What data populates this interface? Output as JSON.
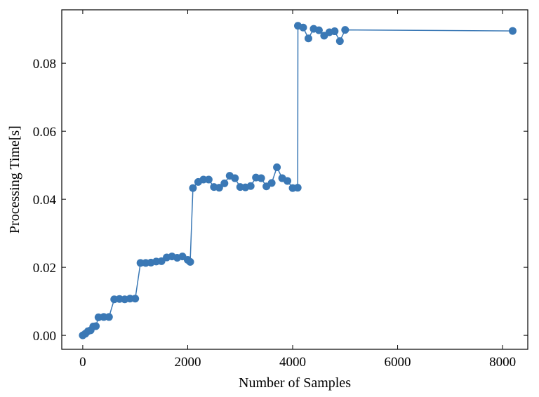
{
  "chart_data": {
    "type": "line",
    "title": "",
    "xlabel": "Number of Samples",
    "ylabel": "Processing Time[s]",
    "xlim": [
      -400,
      8480
    ],
    "ylim": [
      -0.0041,
      0.0957
    ],
    "xticks": [
      0,
      2000,
      4000,
      6000,
      8000
    ],
    "xtick_labels": [
      "0",
      "2000",
      "4000",
      "6000",
      "8000"
    ],
    "yticks": [
      0.0,
      0.02,
      0.04,
      0.06,
      0.08
    ],
    "ytick_labels": [
      "0.00",
      "0.02",
      "0.04",
      "0.06",
      "0.08"
    ],
    "grid": false,
    "color": "#3a78b5",
    "marker": "circle",
    "series": [
      {
        "x": [
          0,
          50,
          100,
          150,
          200,
          250,
          300,
          400,
          500,
          600,
          700,
          800,
          900,
          1000,
          1100,
          1200,
          1300,
          1400,
          1500,
          1600,
          1700,
          1800,
          1900,
          2000,
          2048,
          2100,
          2200,
          2300,
          2400,
          2500,
          2600,
          2700,
          2800,
          2900,
          3000,
          3100,
          3200,
          3300,
          3400,
          3500,
          3600,
          3700,
          3800,
          3900,
          4000,
          4096,
          4100,
          4200,
          4300,
          4400,
          4500,
          4600,
          4700,
          4800,
          4900,
          5000,
          8192
        ],
        "y": [
          0.0,
          0.0005,
          0.0012,
          0.0015,
          0.0026,
          0.0027,
          0.0053,
          0.0054,
          0.0054,
          0.0106,
          0.0107,
          0.0106,
          0.0108,
          0.0108,
          0.0213,
          0.0213,
          0.0214,
          0.0217,
          0.0218,
          0.0229,
          0.0232,
          0.0228,
          0.0232,
          0.0222,
          0.0216,
          0.0433,
          0.0451,
          0.0458,
          0.0458,
          0.0436,
          0.0434,
          0.0447,
          0.0469,
          0.0462,
          0.0436,
          0.0435,
          0.0439,
          0.0464,
          0.0462,
          0.0438,
          0.0448,
          0.0494,
          0.0462,
          0.0454,
          0.0433,
          0.0434,
          0.091,
          0.0905,
          0.0873,
          0.0901,
          0.0897,
          0.0881,
          0.0891,
          0.0894,
          0.0865,
          0.0898,
          0.0895
        ]
      }
    ]
  }
}
